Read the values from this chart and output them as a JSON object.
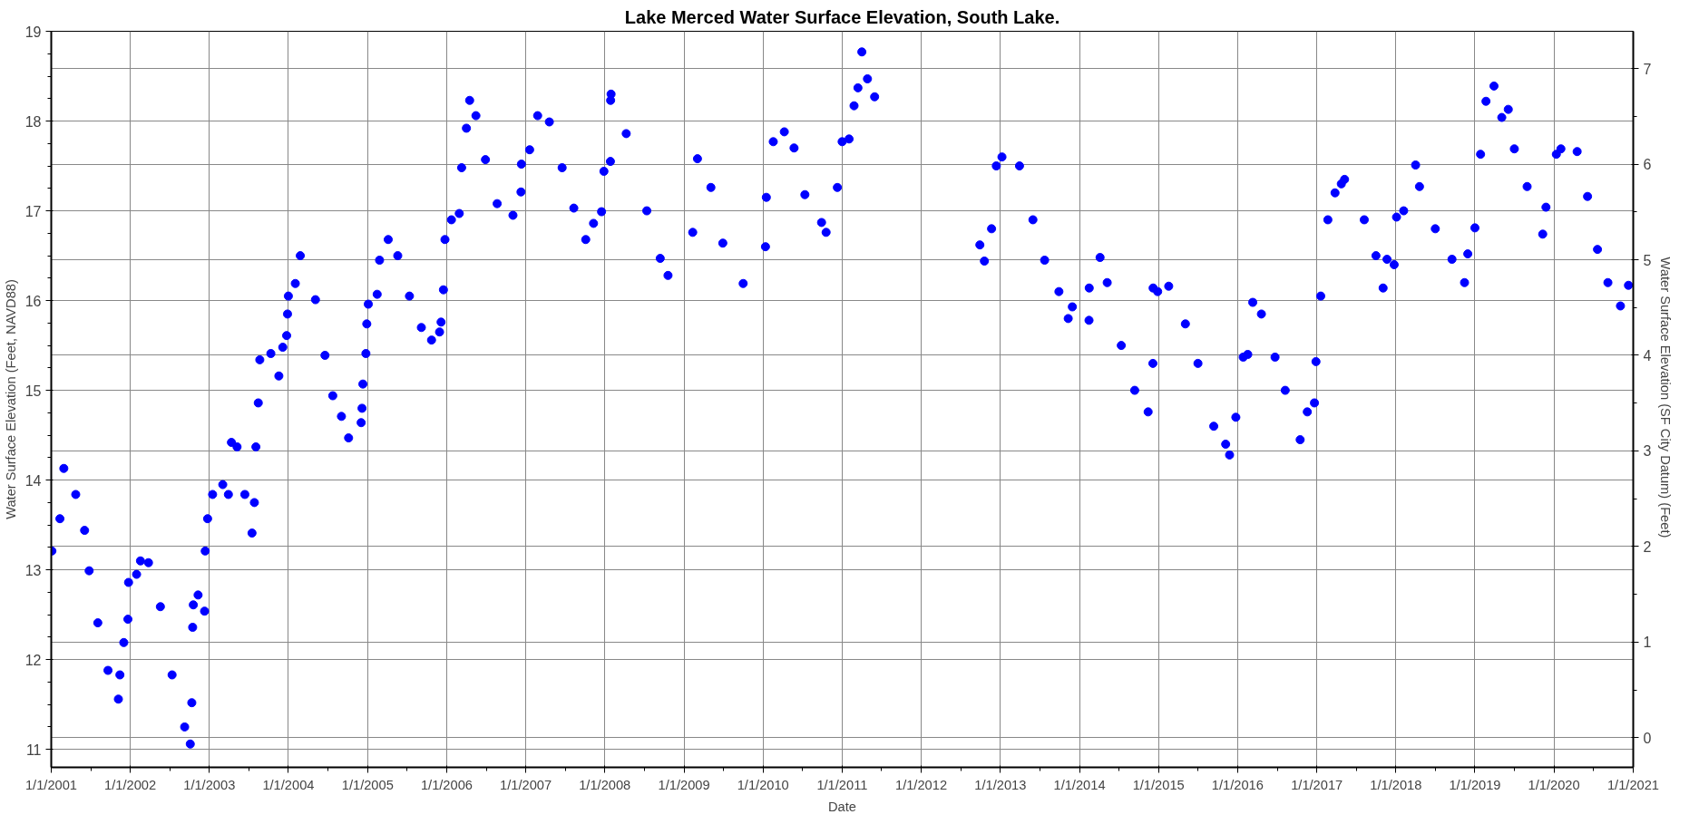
{
  "chart_data": {
    "type": "scatter",
    "title": "Lake Merced Water Surface Elevation, South Lake.",
    "xlabel": "Date",
    "ylabel": "Water Surface Elevation (Feet, NAVD88)",
    "y2label": "Water Surface Elevation (SF City Datum)  (Feet)",
    "marker": "circle",
    "grid": true,
    "xlim": [
      "2001-01-01",
      "2021-01-01"
    ],
    "xticks": [
      {
        "value": "2001-01-01",
        "label": "1/1/2001"
      },
      {
        "value": "2002-01-01",
        "label": "1/1/2002"
      },
      {
        "value": "2003-01-01",
        "label": "1/1/2003"
      },
      {
        "value": "2004-01-01",
        "label": "1/1/2004"
      },
      {
        "value": "2005-01-01",
        "label": "1/1/2005"
      },
      {
        "value": "2006-01-01",
        "label": "1/1/2006"
      },
      {
        "value": "2007-01-01",
        "label": "1/1/2007"
      },
      {
        "value": "2008-01-01",
        "label": "1/1/2008"
      },
      {
        "value": "2009-01-01",
        "label": "1/1/2009"
      },
      {
        "value": "2010-01-01",
        "label": "1/1/2010"
      },
      {
        "value": "2011-01-01",
        "label": "1/1/2011"
      },
      {
        "value": "2012-01-01",
        "label": "1/1/2012"
      },
      {
        "value": "2013-01-01",
        "label": "1/1/2013"
      },
      {
        "value": "2014-01-01",
        "label": "1/1/2014"
      },
      {
        "value": "2015-01-01",
        "label": "1/1/2015"
      },
      {
        "value": "2016-01-01",
        "label": "1/1/2016"
      },
      {
        "value": "2017-01-01",
        "label": "1/1/2017"
      },
      {
        "value": "2018-01-01",
        "label": "1/1/2018"
      },
      {
        "value": "2019-01-01",
        "label": "1/1/2019"
      },
      {
        "value": "2020-01-01",
        "label": "1/1/2020"
      },
      {
        "value": "2021-01-01",
        "label": "1/1/2021"
      }
    ],
    "ylim": [
      10.8,
      19
    ],
    "yticks": [
      11,
      12,
      13,
      14,
      15,
      16,
      17,
      18,
      19
    ],
    "y2lim": [
      -0.31,
      7.39
    ],
    "y2ticks": [
      0,
      1,
      2,
      3,
      4,
      5,
      6,
      7
    ],
    "series": [
      {
        "color": "#0000ff",
        "x": [
          "2001-01-04",
          "2001-02-10",
          "2001-02-28",
          "2001-04-24",
          "2001-06-04",
          "2001-06-25",
          "2001-08-04",
          "2001-09-20",
          "2001-11-07",
          "2001-11-14",
          "2001-12-02",
          "2001-12-21",
          "2001-12-24",
          "2002-01-30",
          "2002-02-17",
          "2002-03-26",
          "2002-05-20",
          "2002-07-13",
          "2002-09-09",
          "2002-10-05",
          "2002-10-12",
          "2002-10-16",
          "2002-10-19",
          "2002-11-10",
          "2002-12-10",
          "2002-12-13",
          "2002-12-24",
          "2003-01-16",
          "2003-03-04",
          "2003-03-30",
          "2003-04-13",
          "2003-05-09",
          "2003-06-14",
          "2003-07-17",
          "2003-07-28",
          "2003-08-04",
          "2003-08-15",
          "2003-08-22",
          "2003-10-12",
          "2003-11-18",
          "2003-12-06",
          "2003-12-24",
          "2003-12-28",
          "2004-01-01",
          "2004-02-02",
          "2004-02-25",
          "2004-05-05",
          "2004-06-18",
          "2004-07-24",
          "2004-09-02",
          "2004-10-05",
          "2004-12-02",
          "2004-12-06",
          "2004-12-10",
          "2004-12-24",
          "2004-12-28",
          "2005-01-04",
          "2005-02-14",
          "2005-02-25",
          "2005-04-06",
          "2005-05-20",
          "2005-07-13",
          "2005-09-06",
          "2005-10-23",
          "2005-11-29",
          "2005-12-06",
          "2005-12-17",
          "2005-12-24",
          "2006-01-23",
          "2006-02-28",
          "2006-03-11",
          "2006-04-02",
          "2006-04-17",
          "2006-05-16",
          "2006-06-29",
          "2006-08-22",
          "2006-11-03",
          "2006-12-10",
          "2006-12-12",
          "2007-01-19",
          "2007-02-25",
          "2007-04-20",
          "2007-06-18",
          "2007-08-11",
          "2007-10-05",
          "2007-11-10",
          "2007-12-17",
          "2007-12-28",
          "2008-01-27",
          "2008-01-28",
          "2008-01-30",
          "2008-04-09",
          "2008-07-13",
          "2008-09-13",
          "2008-10-19",
          "2009-02-10",
          "2009-03-04",
          "2009-05-05",
          "2009-06-29",
          "2009-10-01",
          "2010-01-12",
          "2010-01-16",
          "2010-02-17",
          "2010-04-09",
          "2010-05-24",
          "2010-07-13",
          "2010-09-28",
          "2010-10-19",
          "2010-12-10",
          "2011-01-01",
          "2011-02-02",
          "2011-02-25",
          "2011-03-15",
          "2011-04-02",
          "2011-04-28",
          "2011-05-31",
          "2012-09-28",
          "2012-10-19",
          "2012-11-21",
          "2012-12-13",
          "2013-01-08",
          "2013-03-30",
          "2013-05-31",
          "2013-07-24",
          "2013-09-28",
          "2013-11-10",
          "2013-11-29",
          "2014-02-14",
          "2014-02-15",
          "2014-04-06",
          "2014-05-09",
          "2014-07-13",
          "2014-09-13",
          "2014-11-14",
          "2014-12-06",
          "2014-12-07",
          "2014-12-28",
          "2015-02-17",
          "2015-05-05",
          "2015-07-02",
          "2015-09-13",
          "2015-11-07",
          "2015-11-25",
          "2015-12-24",
          "2016-01-27",
          "2016-02-17",
          "2016-03-11",
          "2016-04-20",
          "2016-06-22",
          "2016-08-08",
          "2016-10-16",
          "2016-11-18",
          "2016-12-21",
          "2016-12-28",
          "2017-01-19",
          "2017-02-21",
          "2017-03-26",
          "2017-04-24",
          "2017-05-09",
          "2017-08-08",
          "2017-10-01",
          "2017-11-03",
          "2017-11-21",
          "2017-12-24",
          "2018-01-04",
          "2018-02-06",
          "2018-04-02",
          "2018-04-20",
          "2018-07-02",
          "2018-09-17",
          "2018-11-14",
          "2018-11-29",
          "2019-01-01",
          "2019-01-27",
          "2019-02-21",
          "2019-03-30",
          "2019-05-05",
          "2019-06-04",
          "2019-07-02",
          "2019-08-30",
          "2019-11-10",
          "2019-11-25",
          "2020-01-12",
          "2020-02-02",
          "2020-04-17",
          "2020-06-04",
          "2020-07-20",
          "2020-09-06",
          "2020-11-03",
          "2020-12-10"
        ],
        "values": [
          13.21,
          13.57,
          14.13,
          13.84,
          13.44,
          12.99,
          12.41,
          11.88,
          11.56,
          11.83,
          12.19,
          12.45,
          12.86,
          12.95,
          13.1,
          13.08,
          12.59,
          11.83,
          11.25,
          11.06,
          11.52,
          12.36,
          12.61,
          12.72,
          12.54,
          13.21,
          13.57,
          13.84,
          13.95,
          13.84,
          14.42,
          14.37,
          13.84,
          13.41,
          13.75,
          14.37,
          14.86,
          15.34,
          15.41,
          15.16,
          15.48,
          15.61,
          15.85,
          16.05,
          16.19,
          16.5,
          16.01,
          15.39,
          14.94,
          14.71,
          14.47,
          14.64,
          14.8,
          15.07,
          15.41,
          15.74,
          15.96,
          16.07,
          16.45,
          16.68,
          16.5,
          16.05,
          15.7,
          15.56,
          15.65,
          15.76,
          16.12,
          16.68,
          16.9,
          16.97,
          17.48,
          17.92,
          18.23,
          18.06,
          17.57,
          17.08,
          16.95,
          17.21,
          17.52,
          17.68,
          18.06,
          17.99,
          17.48,
          17.03,
          16.68,
          16.86,
          16.99,
          17.44,
          17.55,
          18.23,
          18.3,
          17.86,
          17.0,
          16.47,
          16.28,
          16.76,
          17.58,
          17.26,
          16.64,
          16.19,
          16.6,
          17.15,
          17.77,
          17.88,
          17.7,
          17.18,
          16.87,
          16.76,
          17.26,
          17.77,
          17.8,
          18.17,
          18.37,
          18.77,
          18.47,
          18.27,
          16.62,
          16.44,
          16.8,
          17.5,
          17.6,
          17.5,
          16.9,
          16.45,
          16.1,
          15.8,
          15.93,
          15.78,
          16.14,
          16.48,
          16.2,
          15.5,
          15.0,
          14.76,
          15.3,
          16.14,
          16.1,
          16.16,
          15.74,
          15.3,
          14.6,
          14.4,
          14.28,
          14.7,
          15.37,
          15.4,
          15.98,
          15.85,
          15.37,
          15.0,
          14.45,
          14.76,
          14.86,
          15.32,
          16.05,
          16.9,
          17.2,
          17.3,
          17.35,
          16.9,
          16.5,
          16.14,
          16.46,
          16.4,
          16.93,
          17.0,
          17.51,
          17.27,
          16.8,
          16.46,
          16.2,
          16.52,
          16.81,
          17.63,
          18.22,
          18.39,
          18.04,
          18.13,
          17.69,
          17.27,
          16.74,
          17.04,
          17.63,
          17.69,
          17.66,
          17.16,
          16.57,
          16.2,
          15.94,
          16.17
        ]
      }
    ]
  }
}
